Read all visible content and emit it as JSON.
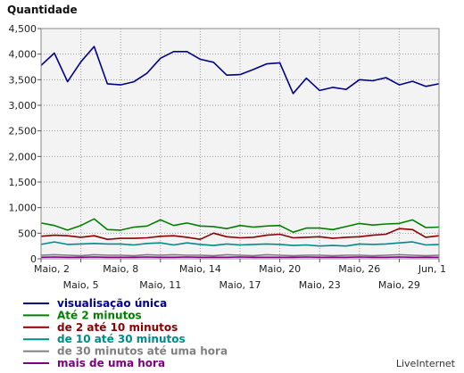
{
  "chart_data": {
    "type": "line",
    "ylabel": "Quantidade",
    "ylim": [
      0,
      4500
    ],
    "yticks": [
      "0",
      "500",
      "1,000",
      "1,500",
      "2,000",
      "2,500",
      "3,000",
      "3,500",
      "4,000",
      "4,500"
    ],
    "grid": true,
    "legend_position": "bottom-left",
    "watermark": "LiveInternet",
    "x_labels": [
      {
        "label": "Maio, 2",
        "row": 1
      },
      {
        "label": "Maio, 5",
        "row": 2
      },
      {
        "label": "Maio, 8",
        "row": 1
      },
      {
        "label": "Maio, 11",
        "row": 2
      },
      {
        "label": "Maio, 14",
        "row": 1
      },
      {
        "label": "Maio, 17",
        "row": 2
      },
      {
        "label": "Maio, 20",
        "row": 1
      },
      {
        "label": "Maio, 23",
        "row": 2
      },
      {
        "label": "Maio, 26",
        "row": 1
      },
      {
        "label": "Maio, 29",
        "row": 2
      },
      {
        "label": "Jun, 1",
        "row": 1
      }
    ],
    "series": [
      {
        "name": "visualisação única",
        "color": "#00008b",
        "values": [
          3780,
          4020,
          3460,
          3850,
          4150,
          3420,
          3400,
          3460,
          3630,
          3920,
          4050,
          4050,
          3900,
          3840,
          3590,
          3600,
          3700,
          3810,
          3830,
          3230,
          3530,
          3290,
          3350,
          3310,
          3500,
          3480,
          3540,
          3400,
          3470,
          3370,
          3420
        ]
      },
      {
        "name": "Até 2 minutos",
        "color": "#008000",
        "values": [
          700,
          650,
          560,
          650,
          780,
          570,
          560,
          620,
          640,
          760,
          650,
          700,
          640,
          630,
          590,
          650,
          620,
          640,
          650,
          520,
          600,
          600,
          570,
          630,
          690,
          660,
          680,
          690,
          760,
          610,
          620
        ]
      },
      {
        "name": "de 2 até 10 minutos",
        "color": "#8b0000",
        "values": [
          440,
          460,
          450,
          420,
          450,
          380,
          400,
          400,
          410,
          440,
          450,
          420,
          380,
          500,
          430,
          410,
          420,
          460,
          480,
          410,
          420,
          430,
          400,
          420,
          430,
          460,
          480,
          590,
          570,
          420,
          450
        ]
      },
      {
        "name": "de 10 até 30 minutos",
        "color": "#008b8b",
        "values": [
          280,
          330,
          280,
          290,
          300,
          290,
          290,
          270,
          300,
          310,
          270,
          310,
          280,
          260,
          290,
          270,
          280,
          290,
          280,
          260,
          270,
          250,
          260,
          250,
          290,
          280,
          290,
          310,
          330,
          270,
          280
        ]
      },
      {
        "name": "de 30 minutos até uma hora",
        "color": "#808080",
        "values": [
          70,
          80,
          70,
          60,
          80,
          70,
          70,
          60,
          80,
          70,
          80,
          70,
          70,
          60,
          80,
          70,
          60,
          80,
          70,
          60,
          70,
          70,
          60,
          70,
          70,
          60,
          70,
          80,
          70,
          60,
          70
        ]
      },
      {
        "name": "mais de uma hora",
        "color": "#800080",
        "values": [
          30,
          35,
          30,
          30,
          35,
          30,
          30,
          30,
          35,
          30,
          30,
          35,
          30,
          30,
          30,
          35,
          30,
          30,
          30,
          30,
          35,
          30,
          30,
          30,
          35,
          30,
          30,
          35,
          30,
          30,
          30
        ]
      }
    ]
  }
}
